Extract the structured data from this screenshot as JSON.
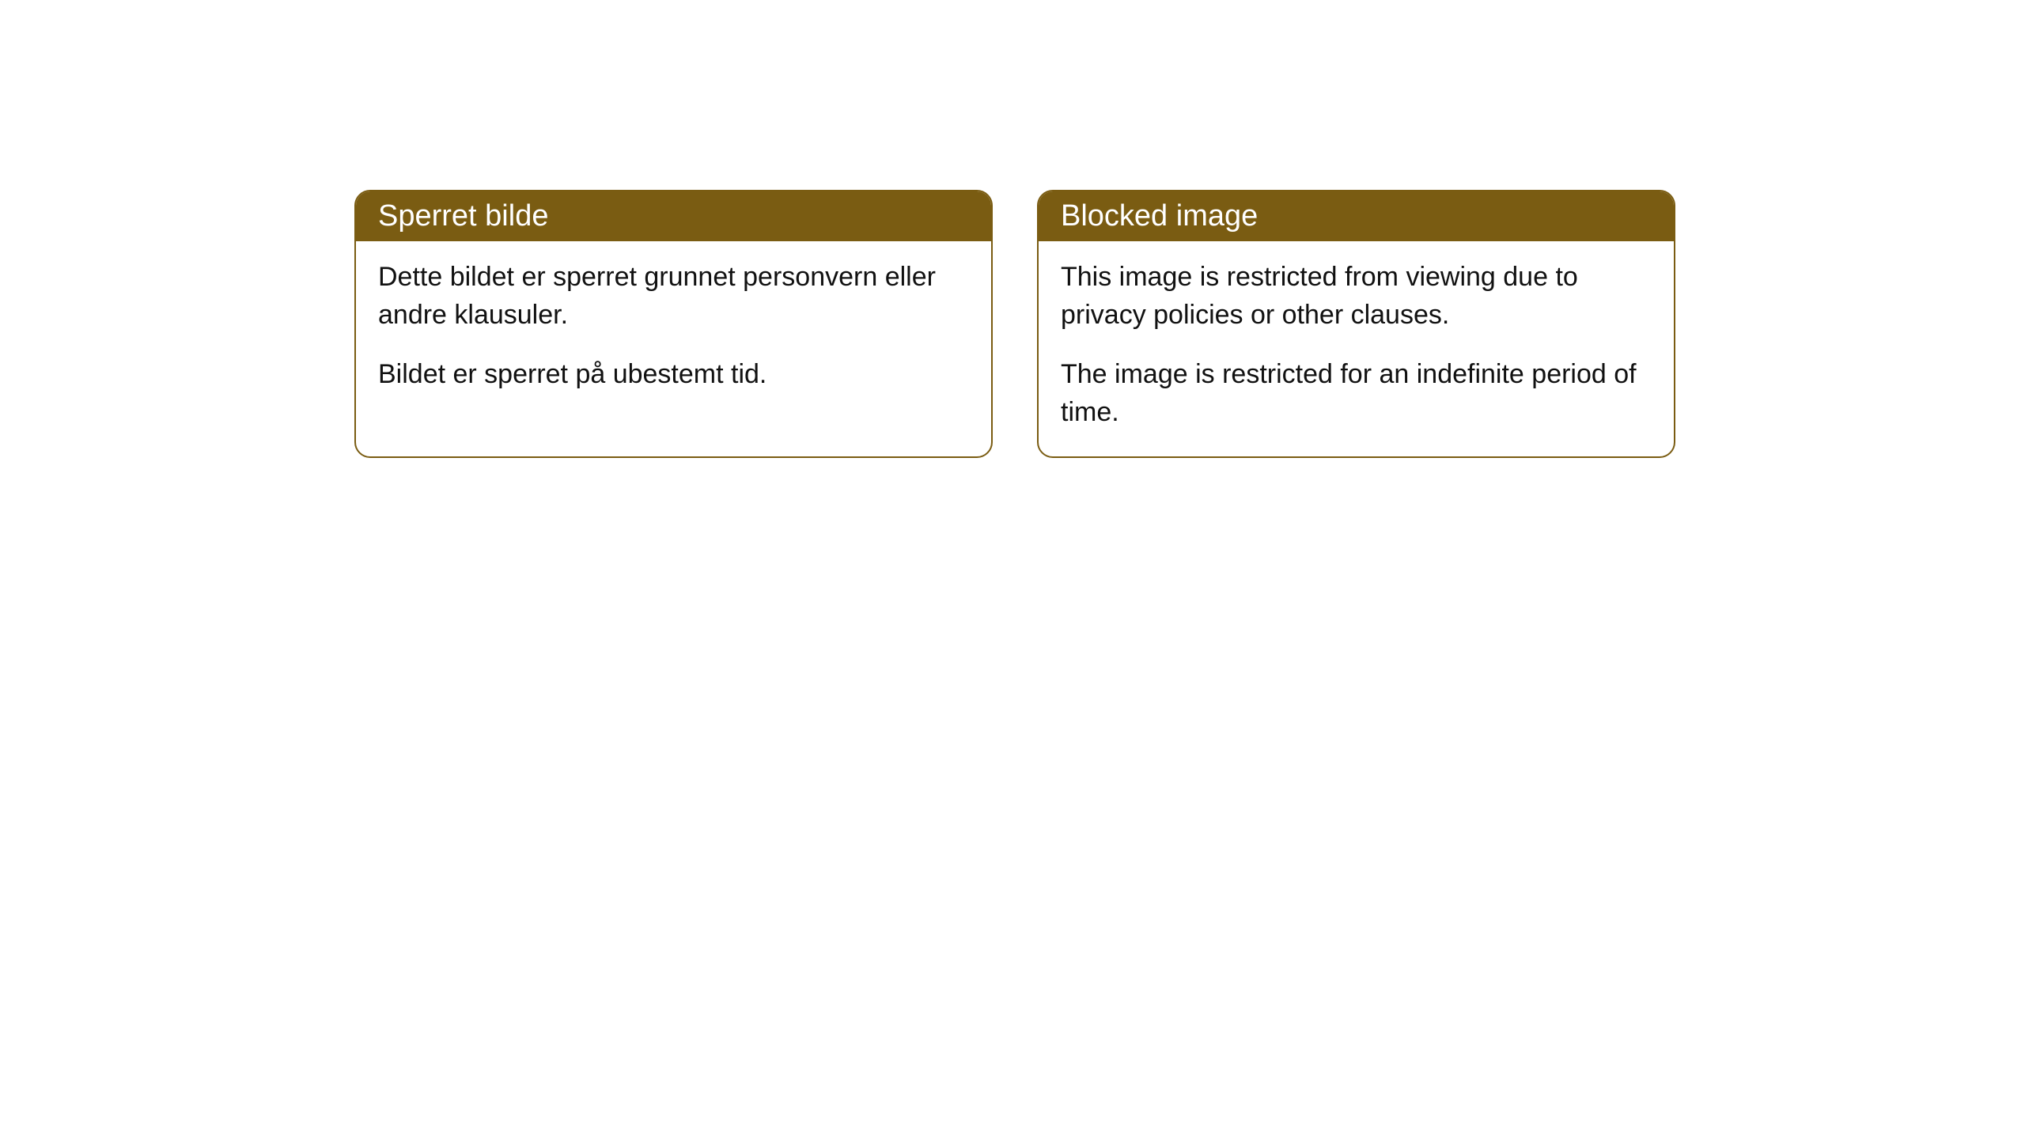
{
  "cards": [
    {
      "title": "Sperret bilde",
      "paragraph1": "Dette bildet er sperret grunnet personvern eller andre klausuler.",
      "paragraph2": "Bildet er sperret på ubestemt tid."
    },
    {
      "title": "Blocked image",
      "paragraph1": "This image is restricted from viewing due to privacy policies or other clauses.",
      "paragraph2": "The image is restricted for an indefinite period of time."
    }
  ],
  "styling": {
    "header_background": "#7a5c12",
    "header_text_color": "#ffffff",
    "border_color": "#7a5c12",
    "body_background": "#ffffff",
    "body_text_color": "#111111",
    "border_radius": 20,
    "header_fontsize": 38,
    "body_fontsize": 34
  }
}
